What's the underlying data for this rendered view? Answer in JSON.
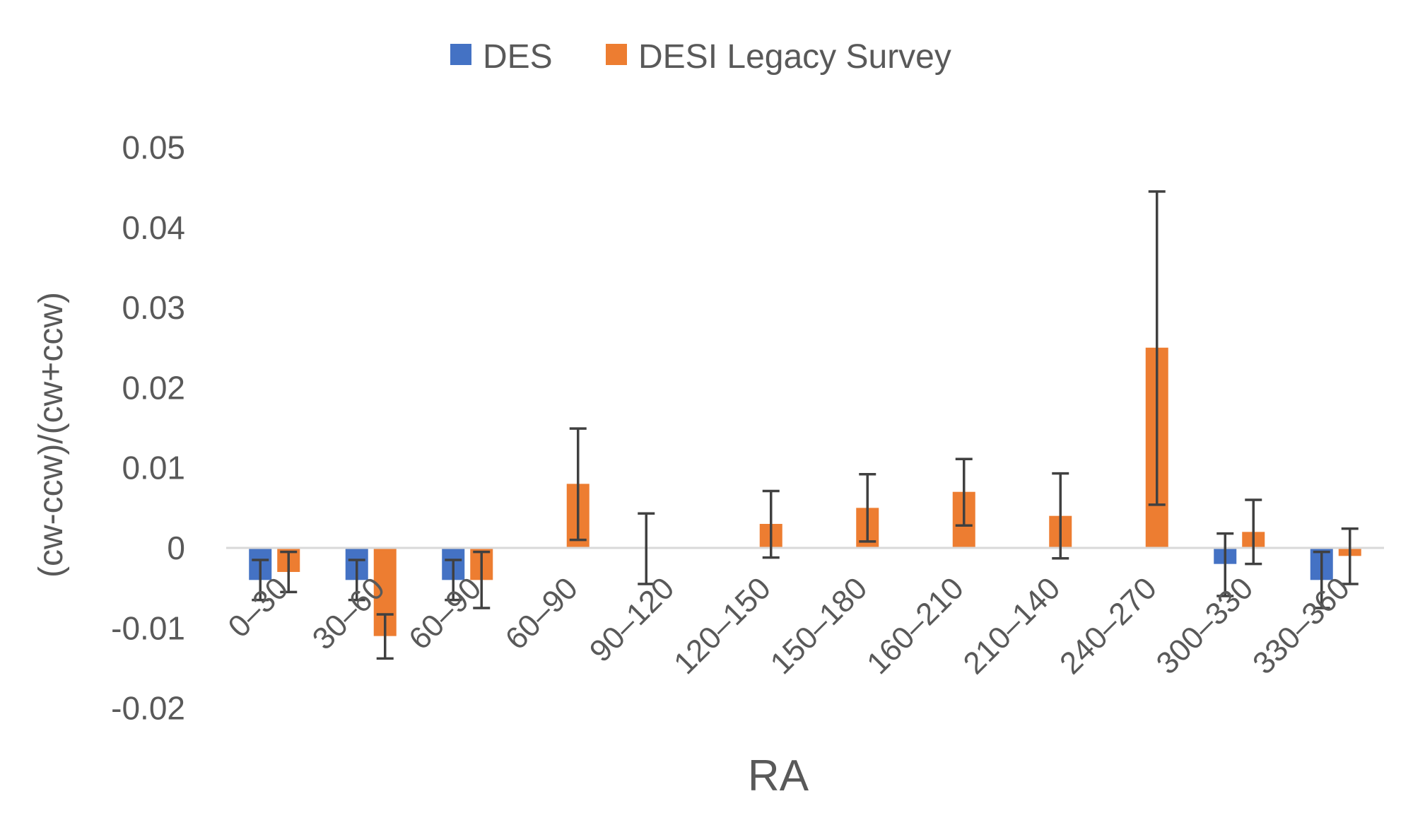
{
  "chart_data": {
    "type": "bar",
    "title": "",
    "xlabel": "RA",
    "ylabel": "(cw-ccw)/(cw+ccw)",
    "ylim": [
      -0.02,
      0.05
    ],
    "yticks": [
      -0.02,
      -0.01,
      0,
      0.01,
      0.02,
      0.03,
      0.04,
      0.05
    ],
    "ytick_labels": [
      "-0.02",
      "-0.01",
      "0",
      "0.01",
      "0.02",
      "0.03",
      "0.04",
      "0.05"
    ],
    "grid": false,
    "legend_position": "top-center",
    "categories": [
      "0–30",
      "30–60",
      "60–90",
      "60–90",
      "90–120",
      "120–150",
      "150–180",
      "160–210",
      "210–140",
      "240–270",
      "300–330",
      "330–360"
    ],
    "series": [
      {
        "name": "DES",
        "color": "#4472C4",
        "values": [
          -0.004,
          -0.004,
          -0.004,
          null,
          null,
          null,
          null,
          null,
          null,
          null,
          -0.002,
          -0.004
        ],
        "err_low": [
          -0.0065,
          -0.0065,
          -0.0065,
          null,
          -0.0045,
          null,
          null,
          null,
          null,
          null,
          -0.006,
          -0.0075
        ],
        "err_high": [
          -0.0015,
          -0.0015,
          -0.0015,
          null,
          0.0043,
          null,
          null,
          null,
          null,
          null,
          0.0018,
          -0.0005
        ]
      },
      {
        "name": "DESI Legacy Survey",
        "color": "#ED7D31",
        "values": [
          -0.003,
          -0.011,
          -0.004,
          0.008,
          null,
          0.003,
          0.005,
          0.007,
          0.004,
          0.025,
          0.002,
          -0.001
        ],
        "err_low": [
          -0.0055,
          -0.0138,
          -0.0075,
          0.001,
          null,
          -0.0012,
          0.0008,
          0.0028,
          -0.0013,
          0.0054,
          -0.002,
          -0.0045
        ],
        "err_high": [
          -0.0005,
          -0.0083,
          -0.0005,
          0.0149,
          null,
          0.0071,
          0.0092,
          0.0111,
          0.0093,
          0.0445,
          0.006,
          0.0024
        ]
      }
    ]
  }
}
